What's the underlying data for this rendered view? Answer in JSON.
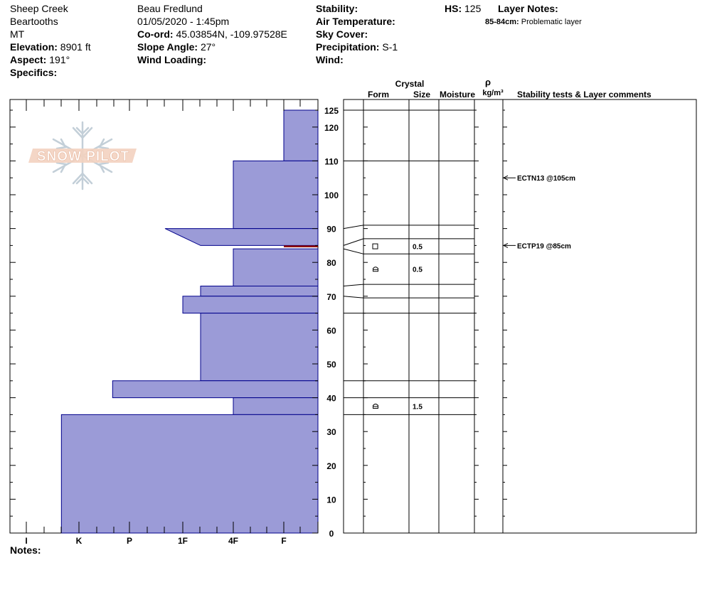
{
  "header": {
    "location": "Sheep Creek",
    "range": "Beartooths",
    "state": "MT",
    "elevation_label": "Elevation:",
    "elevation_value": "8901 ft",
    "aspect_label": "Aspect:",
    "aspect_value": "191°",
    "specifics_label": "Specifics:",
    "observer": "Beau  Fredlund",
    "datetime": "01/05/2020 - 1:45pm",
    "coord_label": "Co-ord:",
    "coord_value": "45.03854N, -109.97528E",
    "slope_label": "Slope Angle:",
    "slope_value": "27°",
    "wind_loading_label": "Wind Loading:",
    "stability_label": "Stability:",
    "air_temp_label": "Air Temperature:",
    "sky_label": "Sky Cover:",
    "precip_label": "Precipitation:",
    "precip_value": "S-1",
    "wind_label": "Wind:",
    "hs_label": "HS:",
    "hs_value": "125",
    "layer_notes_label": "Layer Notes:",
    "layer_note_range": "85-84cm:",
    "layer_note_text": "Problematic layer"
  },
  "logo": {
    "text": "SNOW PILOT"
  },
  "columns": {
    "crystal": "Crystal",
    "form": "Form",
    "size": "Size",
    "moisture": "Moisture",
    "rho": "ρ",
    "density_unit": "kg/m³",
    "comments": "Stability tests & Layer comments"
  },
  "notes_label": "Notes:",
  "colors": {
    "layer_fill": "#9b9bd7",
    "layer_stroke": "#00008b",
    "problem": "#8b0000"
  },
  "chart_data": {
    "type": "bar",
    "title": "",
    "xlabel": "",
    "ylabel": "",
    "ylim": [
      0,
      125
    ],
    "y_ticks": [
      0,
      10,
      20,
      30,
      40,
      50,
      60,
      70,
      80,
      90,
      100,
      110,
      120,
      125
    ],
    "hardness_scale": [
      "I",
      "K",
      "P",
      "1F",
      "4F",
      "F"
    ],
    "layers": [
      {
        "top": 125,
        "bottom": 110,
        "hardness": "F"
      },
      {
        "top": 110,
        "bottom": 90,
        "hardness": "4F"
      },
      {
        "top": 90,
        "bottom": 85,
        "hardness": "1F+",
        "hardness_bottom": "1F-"
      },
      {
        "top": 84,
        "bottom": 73,
        "hardness": "4F"
      },
      {
        "top": 73,
        "bottom": 70,
        "hardness": "1F-"
      },
      {
        "top": 70,
        "bottom": 65,
        "hardness": "1F"
      },
      {
        "top": 65,
        "bottom": 45,
        "hardness": "1F-"
      },
      {
        "top": 45,
        "bottom": 40,
        "hardness": "P+"
      },
      {
        "top": 40,
        "bottom": 35,
        "hardness": "4F"
      },
      {
        "top": 35,
        "bottom": 0,
        "hardness": "K+"
      }
    ],
    "problem_layer": {
      "top": 85,
      "bottom": 84
    },
    "grain_rows": [
      {
        "top": 87,
        "bottom": 82.5,
        "form": "square",
        "size": "0.5"
      },
      {
        "top": 82.5,
        "bottom": 73.5,
        "form": "faceted",
        "size": "0.5"
      },
      {
        "top": 40,
        "bottom": 35,
        "form": "faceted",
        "size": "1.5"
      }
    ],
    "stability_tests": [
      {
        "depth": 105,
        "label": "ECTN13 @105cm"
      },
      {
        "depth": 85,
        "label": "ECTP19 @85cm"
      }
    ]
  }
}
